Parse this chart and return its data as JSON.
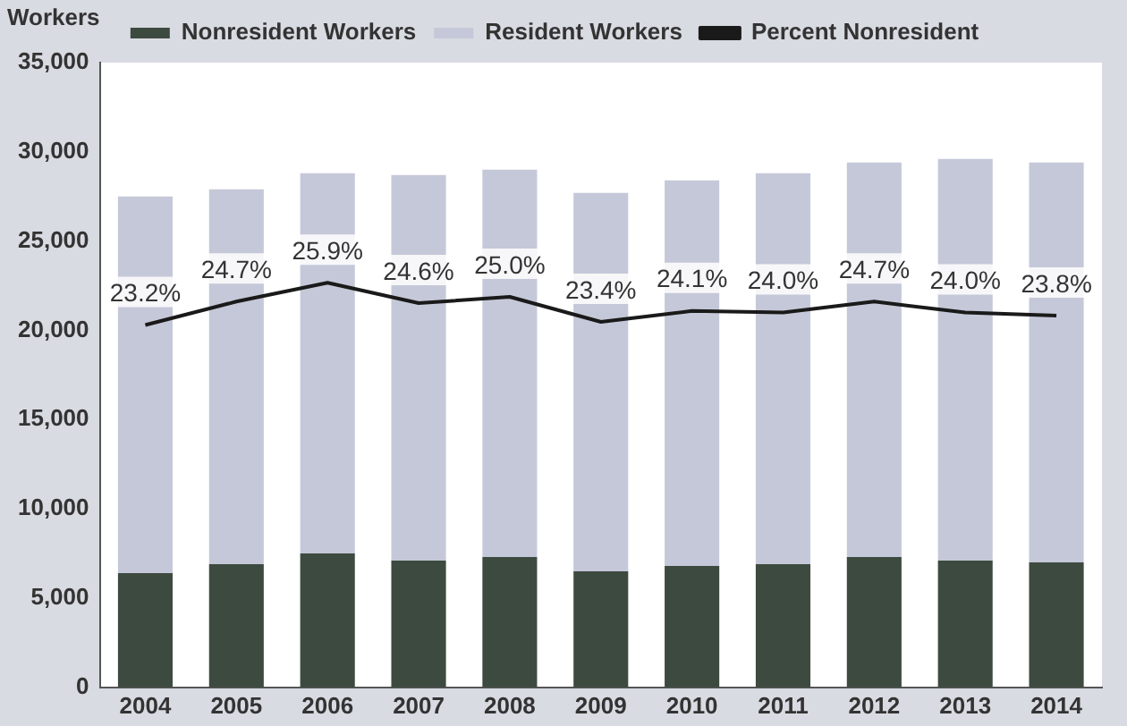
{
  "chart_data": {
    "type": "bar",
    "ylabel": "Workers",
    "stacked": true,
    "categories": [
      "2004",
      "2005",
      "2006",
      "2007",
      "2008",
      "2009",
      "2010",
      "2011",
      "2012",
      "2013",
      "2014"
    ],
    "series": [
      {
        "name": "Nonresident Workers",
        "color": "#3d4a40",
        "values": [
          6400,
          6900,
          7500,
          7100,
          7300,
          6500,
          6800,
          6900,
          7300,
          7100,
          7000
        ]
      },
      {
        "name": "Resident Workers",
        "color": "#c5c8d8",
        "values": [
          21100,
          21000,
          21300,
          21600,
          21700,
          21200,
          21600,
          21900,
          22100,
          22500,
          22400
        ]
      },
      {
        "name": "Percent Nonresident",
        "type": "line",
        "axis": "y2",
        "color": "#1a1a1a",
        "values": [
          23.2,
          24.7,
          25.9,
          24.6,
          25.0,
          23.4,
          24.1,
          24.0,
          24.7,
          24.0,
          23.8
        ],
        "value_labels": [
          "23.2%",
          "24.7%",
          "25.9%",
          "24.6%",
          "25.0%",
          "23.4%",
          "24.1%",
          "24.0%",
          "24.7%",
          "24.0%",
          "23.8%"
        ]
      }
    ],
    "ylim": [
      0,
      35000
    ],
    "yticks": [
      0,
      {
        "value": 5000,
        "label": "5,000"
      },
      {
        "value": 10000,
        "label": "10,000"
      },
      {
        "value": 15000,
        "label": "15,000"
      },
      {
        "value": 20000,
        "label": "20,000"
      },
      {
        "value": 25000,
        "label": "25,000"
      },
      {
        "value": 30000,
        "label": "30,000"
      },
      {
        "value": 35000,
        "label": "35,000"
      }
    ],
    "y2lim": [
      0,
      40
    ],
    "grid": false,
    "legend": "top",
    "marker": "none"
  }
}
